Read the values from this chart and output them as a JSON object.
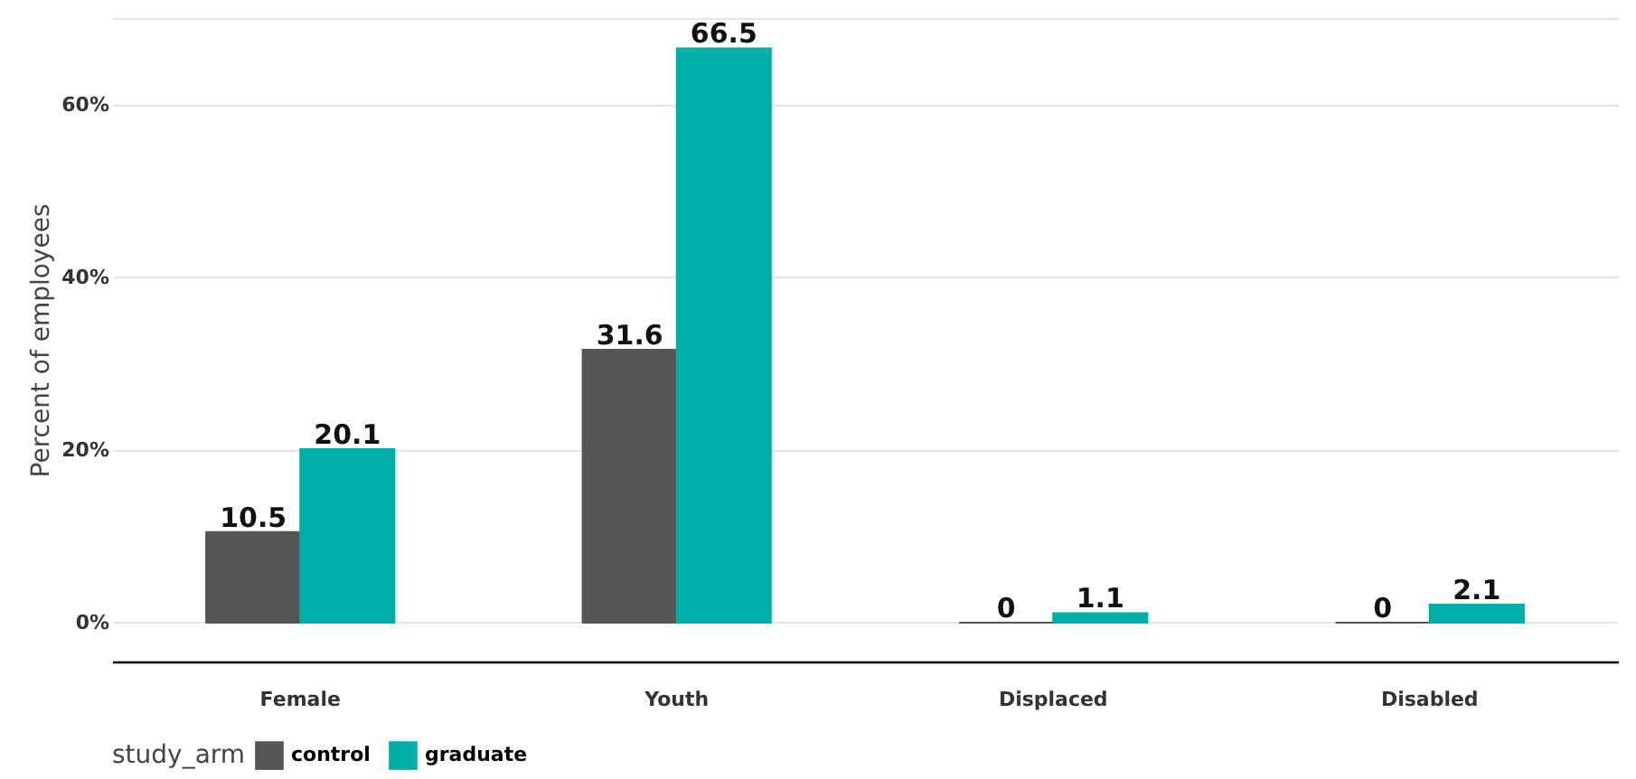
{
  "chart_data": {
    "type": "bar",
    "ylabel": "Percent of employees",
    "legend_title": "study_arm",
    "categories": [
      "Female",
      "Youth",
      "Displaced",
      "Disabled"
    ],
    "series": [
      {
        "name": "control",
        "color": "#555555",
        "values": [
          10.5,
          31.6,
          0,
          0
        ]
      },
      {
        "name": "graduate",
        "color": "#00aea8",
        "values": [
          20.1,
          66.5,
          1.1,
          2.1
        ]
      }
    ],
    "ylim": [
      -4.5,
      70
    ],
    "yticks": [
      {
        "value": 0,
        "label": "0%"
      },
      {
        "value": 20,
        "label": "20%"
      },
      {
        "value": 40,
        "label": "40%"
      },
      {
        "value": 60,
        "label": "60%"
      },
      {
        "value": 70,
        "label": null
      }
    ],
    "grid": "y",
    "legend": "bottom left",
    "data_labels": true
  }
}
